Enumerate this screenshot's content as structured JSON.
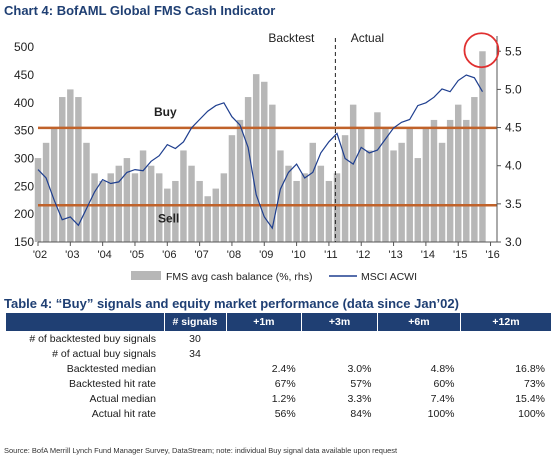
{
  "header": {
    "title": "Chart 4: BofAML Global FMS Cash Indicator"
  },
  "chart_data": {
    "type": "bar",
    "left_axis": {
      "ticks": [
        150,
        200,
        250,
        300,
        350,
        400,
        450,
        500
      ],
      "ylim": [
        150,
        520
      ]
    },
    "right_axis": {
      "ticks": [
        "3.0",
        "3.5",
        "4.0",
        "4.5",
        "5.0",
        "5.5"
      ],
      "ylim": [
        3.0,
        5.7
      ]
    },
    "x_ticks": [
      "'02",
      "'03",
      "'04",
      "'05",
      "'06",
      "'07",
      "'08",
      "'09",
      "'10",
      "'11",
      "'12",
      "'13",
      "'14",
      "'15",
      "'16"
    ],
    "x_start_year": 2002,
    "x_end_year": 2016.2,
    "annotations": {
      "backtest": "Backtest",
      "actual": "Actual",
      "buy": "Buy",
      "sell": "Sell",
      "divider_year": 2011.2
    },
    "threshold_lines": {
      "buy_level": 355,
      "sell_level": 216,
      "color": "#c0622a"
    },
    "colors": {
      "bars": "#b7b7b7",
      "line": "#1f3f8f",
      "circle": "#e03030"
    },
    "series": [
      {
        "name": "FMS avg cash balance (%, rhs)",
        "points": [
          [
            2002.0,
            4.1
          ],
          [
            2002.25,
            4.3
          ],
          [
            2002.5,
            4.5
          ],
          [
            2002.75,
            4.9
          ],
          [
            2003.0,
            5.0
          ],
          [
            2003.25,
            4.9
          ],
          [
            2003.5,
            4.3
          ],
          [
            2003.75,
            3.9
          ],
          [
            2004.0,
            3.8
          ],
          [
            2004.25,
            3.9
          ],
          [
            2004.5,
            4.0
          ],
          [
            2004.75,
            4.1
          ],
          [
            2005.0,
            3.9
          ],
          [
            2005.25,
            4.2
          ],
          [
            2005.5,
            4.0
          ],
          [
            2005.75,
            3.9
          ],
          [
            2006.0,
            3.7
          ],
          [
            2006.25,
            3.8
          ],
          [
            2006.5,
            4.2
          ],
          [
            2006.75,
            4.0
          ],
          [
            2007.0,
            3.8
          ],
          [
            2007.25,
            3.6
          ],
          [
            2007.5,
            3.7
          ],
          [
            2007.75,
            3.9
          ],
          [
            2008.0,
            4.4
          ],
          [
            2008.25,
            4.6
          ],
          [
            2008.5,
            4.9
          ],
          [
            2008.75,
            5.2
          ],
          [
            2009.0,
            5.1
          ],
          [
            2009.25,
            4.8
          ],
          [
            2009.5,
            4.2
          ],
          [
            2009.75,
            4.0
          ],
          [
            2010.0,
            3.8
          ],
          [
            2010.25,
            3.9
          ],
          [
            2010.5,
            4.3
          ],
          [
            2010.75,
            4.0
          ],
          [
            2011.0,
            3.8
          ],
          [
            2011.25,
            3.9
          ],
          [
            2011.5,
            4.4
          ],
          [
            2011.75,
            4.8
          ],
          [
            2012.0,
            4.5
          ],
          [
            2012.25,
            4.2
          ],
          [
            2012.5,
            4.7
          ],
          [
            2012.75,
            4.5
          ],
          [
            2013.0,
            4.2
          ],
          [
            2013.25,
            4.3
          ],
          [
            2013.5,
            4.5
          ],
          [
            2013.75,
            4.1
          ],
          [
            2014.0,
            4.5
          ],
          [
            2014.25,
            4.6
          ],
          [
            2014.5,
            4.3
          ],
          [
            2014.75,
            4.6
          ],
          [
            2015.0,
            4.8
          ],
          [
            2015.25,
            4.6
          ],
          [
            2015.5,
            4.9
          ],
          [
            2015.75,
            5.5
          ]
        ]
      },
      {
        "name": "MSCI ACWI",
        "points": [
          [
            2002.0,
            280
          ],
          [
            2002.25,
            265
          ],
          [
            2002.5,
            225
          ],
          [
            2002.75,
            190
          ],
          [
            2003.0,
            195
          ],
          [
            2003.25,
            180
          ],
          [
            2003.5,
            210
          ],
          [
            2003.75,
            240
          ],
          [
            2004.0,
            262
          ],
          [
            2004.25,
            255
          ],
          [
            2004.5,
            258
          ],
          [
            2004.75,
            275
          ],
          [
            2005.0,
            280
          ],
          [
            2005.25,
            278
          ],
          [
            2005.5,
            295
          ],
          [
            2005.75,
            305
          ],
          [
            2006.0,
            325
          ],
          [
            2006.25,
            318
          ],
          [
            2006.5,
            330
          ],
          [
            2006.75,
            355
          ],
          [
            2007.0,
            370
          ],
          [
            2007.25,
            385
          ],
          [
            2007.5,
            395
          ],
          [
            2007.75,
            400
          ],
          [
            2008.0,
            375
          ],
          [
            2008.25,
            360
          ],
          [
            2008.5,
            320
          ],
          [
            2008.75,
            235
          ],
          [
            2009.0,
            195
          ],
          [
            2009.25,
            175
          ],
          [
            2009.5,
            245
          ],
          [
            2009.75,
            275
          ],
          [
            2010.0,
            290
          ],
          [
            2010.25,
            265
          ],
          [
            2010.5,
            275
          ],
          [
            2010.75,
            310
          ],
          [
            2011.0,
            330
          ],
          [
            2011.25,
            345
          ],
          [
            2011.5,
            300
          ],
          [
            2011.75,
            290
          ],
          [
            2012.0,
            320
          ],
          [
            2012.25,
            310
          ],
          [
            2012.5,
            315
          ],
          [
            2012.75,
            335
          ],
          [
            2013.0,
            355
          ],
          [
            2013.25,
            365
          ],
          [
            2013.5,
            370
          ],
          [
            2013.75,
            395
          ],
          [
            2014.0,
            400
          ],
          [
            2014.25,
            410
          ],
          [
            2014.5,
            425
          ],
          [
            2014.75,
            420
          ],
          [
            2015.0,
            440
          ],
          [
            2015.25,
            450
          ],
          [
            2015.5,
            445
          ],
          [
            2015.75,
            420
          ]
        ]
      }
    ]
  },
  "legend": {
    "bars_label": "FMS avg cash balance (%, rhs)",
    "line_label": "MSCI ACWI"
  },
  "table": {
    "title": "Table 4: “Buy” signals and equity market performance (data since Jan’02)",
    "headers": [
      "",
      "# signals",
      "+1m",
      "+3m",
      "+6m",
      "+12m"
    ],
    "rows": [
      [
        "# of backtested buy signals",
        "30",
        "",
        "",
        "",
        ""
      ],
      [
        "# of actual buy signals",
        "34",
        "",
        "",
        "",
        ""
      ],
      [
        "Backtested median",
        "",
        "2.4%",
        "3.0%",
        "4.8%",
        "16.8%"
      ],
      [
        "Backtested hit rate",
        "",
        "67%",
        "57%",
        "60%",
        "73%"
      ],
      [
        "Actual median",
        "",
        "1.2%",
        "3.3%",
        "7.4%",
        "15.4%"
      ],
      [
        "Actual hit rate",
        "",
        "56%",
        "84%",
        "100%",
        "100%"
      ]
    ]
  },
  "source": "Source: BofA Merrill Lynch Fund Manager Survey, DataStream; note: individual Buy signal data available upon request"
}
